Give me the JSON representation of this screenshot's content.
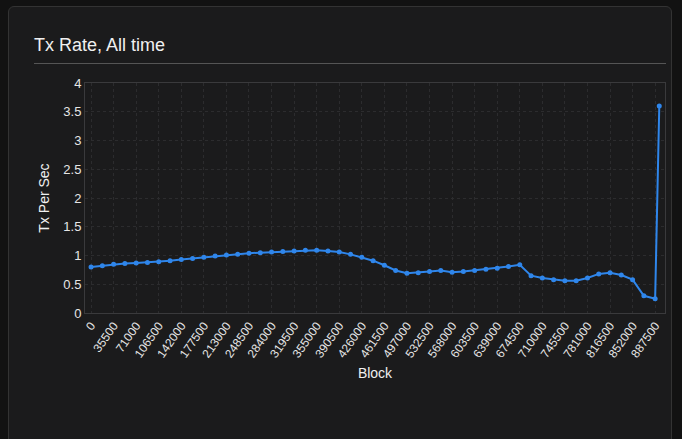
{
  "chart_data": {
    "type": "line",
    "title": "Tx Rate, All time",
    "x_label": "Block",
    "y_label": "Tx Per Sec",
    "color": "#2f86eb",
    "marker": "circle",
    "grid": true,
    "x": [
      0,
      17750,
      35500,
      53250,
      71000,
      88750,
      106500,
      124250,
      142000,
      159750,
      177500,
      195250,
      213000,
      230750,
      248500,
      266250,
      284000,
      301750,
      319500,
      337250,
      355000,
      372750,
      390500,
      408250,
      426000,
      443750,
      461500,
      479250,
      497000,
      514750,
      532500,
      550250,
      568000,
      585750,
      603500,
      621250,
      639000,
      656750,
      674500,
      692250,
      710000,
      727750,
      745500,
      763250,
      781000,
      798750,
      816500,
      834250,
      852000,
      869750,
      887500,
      894000
    ],
    "values": [
      0.8,
      0.82,
      0.85,
      0.86,
      0.87,
      0.88,
      0.89,
      0.91,
      0.93,
      0.95,
      0.97,
      0.99,
      1.01,
      1.02,
      1.04,
      1.05,
      1.06,
      1.07,
      1.08,
      1.09,
      1.09,
      1.08,
      1.06,
      1.02,
      0.97,
      0.91,
      0.83,
      0.74,
      0.69,
      0.7,
      0.72,
      0.74,
      0.71,
      0.72,
      0.74,
      0.76,
      0.78,
      0.81,
      0.84,
      0.65,
      0.61,
      0.58,
      0.56,
      0.56,
      0.61,
      0.68,
      0.7,
      0.66,
      0.58,
      0.3,
      0.25,
      3.6
    ],
    "xlim": [
      -9500,
      903000
    ],
    "xticks": [
      0,
      35500,
      71000,
      106500,
      142000,
      177500,
      213000,
      248500,
      284000,
      319500,
      355000,
      390500,
      426000,
      461500,
      497000,
      532500,
      568000,
      603500,
      639000,
      674500,
      710000,
      745500,
      781000,
      816500,
      852000,
      887500
    ],
    "ylim": [
      0,
      4
    ],
    "yticks": [
      0,
      0.5,
      1,
      1.5,
      2,
      2.5,
      3,
      3.5,
      4
    ]
  }
}
